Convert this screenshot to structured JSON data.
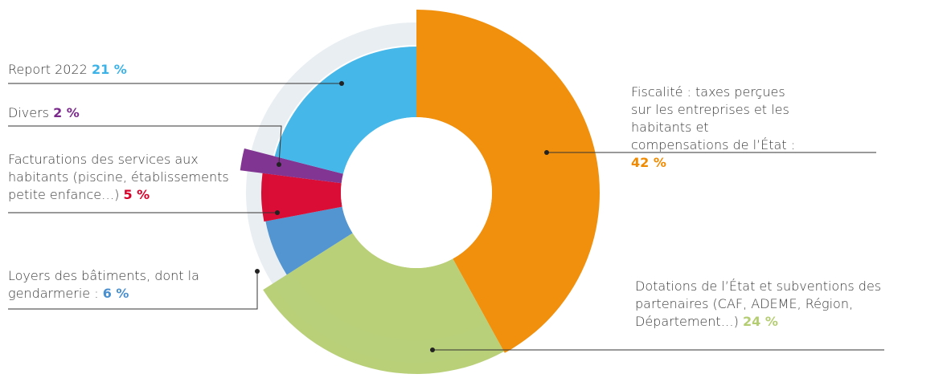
{
  "chart_data": {
    "type": "pie",
    "categories": [
      "Fiscalité : taxes perçues sur les entreprises et les habitants et compensations de l’État :",
      "Dotations de l’État et subventions des partenaires (CAF, ADEME, Région, Département…)",
      "Loyers des bâtiments, dont la gendarmerie :",
      "Facturations des services aux habitants (piscine, établissements petite enfance…)",
      "Divers",
      "Report 2022"
    ],
    "values": [
      42,
      24,
      6,
      5,
      2,
      21
    ],
    "value_labels": [
      "42 %",
      "24 %",
      "6 %",
      "5 %",
      "2 %",
      "21 %"
    ],
    "colors": [
      "#f08a00",
      "#b5cd72",
      "#4a8fcf",
      "#d7002a",
      "#7b2a8c",
      "#3bb3e8"
    ]
  }
}
